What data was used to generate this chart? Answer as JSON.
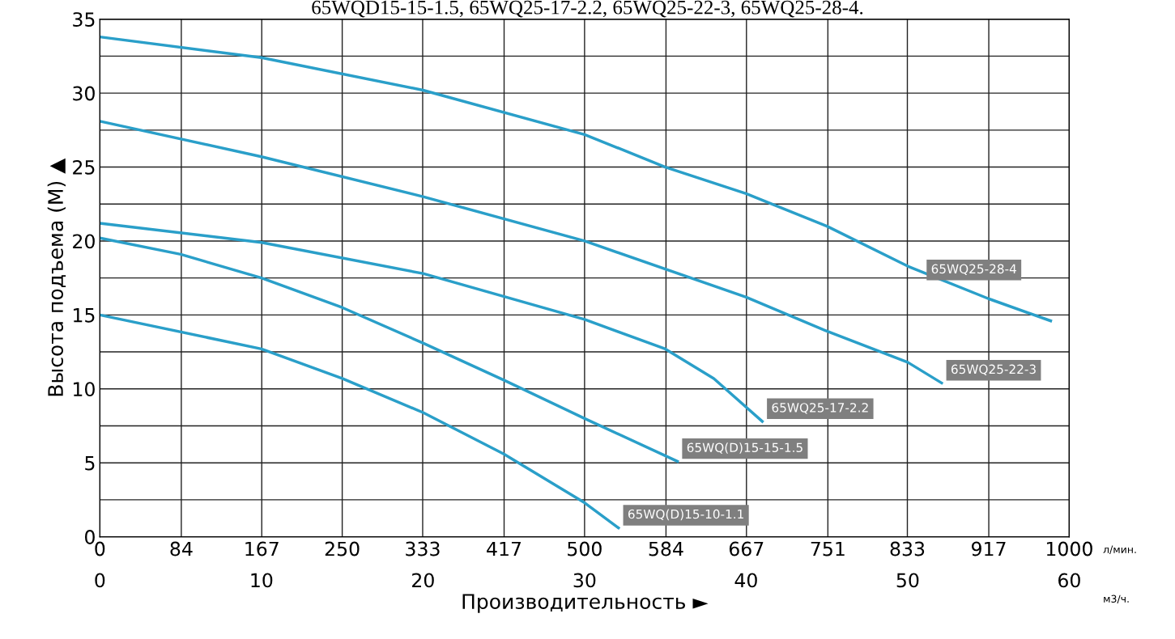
{
  "chart_data": {
    "type": "line",
    "title": "65WQD15-15-1.5, 65WQ25-17-2.2, 65WQ25-22-3, 65WQ25-28-4.",
    "xlabel": "Производительность ►",
    "ylabel": "Высота подъема (М) ▲",
    "xlim": [
      0,
      60
    ],
    "xticks": [
      0,
      10,
      20,
      30,
      40,
      50,
      60
    ],
    "x2lim": [
      0,
      1000
    ],
    "x2ticks": [
      0,
      84,
      167,
      250,
      333,
      417,
      500,
      584,
      667,
      751,
      833,
      917,
      1000
    ],
    "ylim": [
      0,
      35
    ],
    "yticks": [
      0,
      {
        "value": 2.5,
        "label": null
      },
      5,
      {
        "value": 7.5,
        "label": null
      },
      10,
      {
        "value": 12.5,
        "label": null
      },
      15,
      {
        "value": 17.5,
        "label": null
      },
      20,
      {
        "value": 22.5,
        "label": null
      },
      25,
      {
        "value": 27.5,
        "label": null
      },
      30,
      {
        "value": 32.5,
        "label": null
      },
      35
    ],
    "grid": true,
    "legend": false,
    "marker": "none",
    "line_style": "solid",
    "annotations": [
      "л/мин.",
      "м3/ч."
    ],
    "series": [
      {
        "name": "65WQ25-28-4",
        "color": "#2a9fc9",
        "x": [
          0,
          10,
          20,
          30,
          35,
          40,
          45,
          50,
          55,
          58.85
        ],
        "values": [
          33.8,
          32.4,
          30.2,
          27.2,
          25,
          23.2,
          21,
          18.3,
          16.1,
          14.6
        ]
      },
      {
        "name": "65WQ25-22-3",
        "color": "#2a9fc9",
        "x": [
          0,
          10,
          20,
          30,
          40,
          45,
          50,
          52.1
        ],
        "values": [
          28.1,
          25.7,
          23,
          20,
          16.2,
          13.9,
          11.8,
          10.4
        ]
      },
      {
        "name": "65WQ25-17-2.2",
        "color": "#2a9fc9",
        "x": [
          0,
          10,
          20,
          30,
          35,
          38,
          41
        ],
        "values": [
          21.2,
          19.9,
          17.8,
          14.7,
          12.7,
          10.7,
          7.8
        ]
      },
      {
        "name": "65WQ(D)15-15-1.5",
        "color": "#2a9fc9",
        "x": [
          0,
          5,
          10,
          15,
          20,
          25,
          30,
          35.75
        ],
        "values": [
          20.2,
          19.1,
          17.5,
          15.5,
          13.1,
          10.6,
          8,
          5.1
        ]
      },
      {
        "name": "65WQ(D)15-10-1.1",
        "color": "#2a9fc9",
        "x": [
          0,
          10,
          15,
          20,
          25,
          30,
          32.1
        ],
        "values": [
          15,
          12.7,
          10.7,
          8.4,
          5.6,
          2.3,
          0.6
        ]
      }
    ]
  }
}
